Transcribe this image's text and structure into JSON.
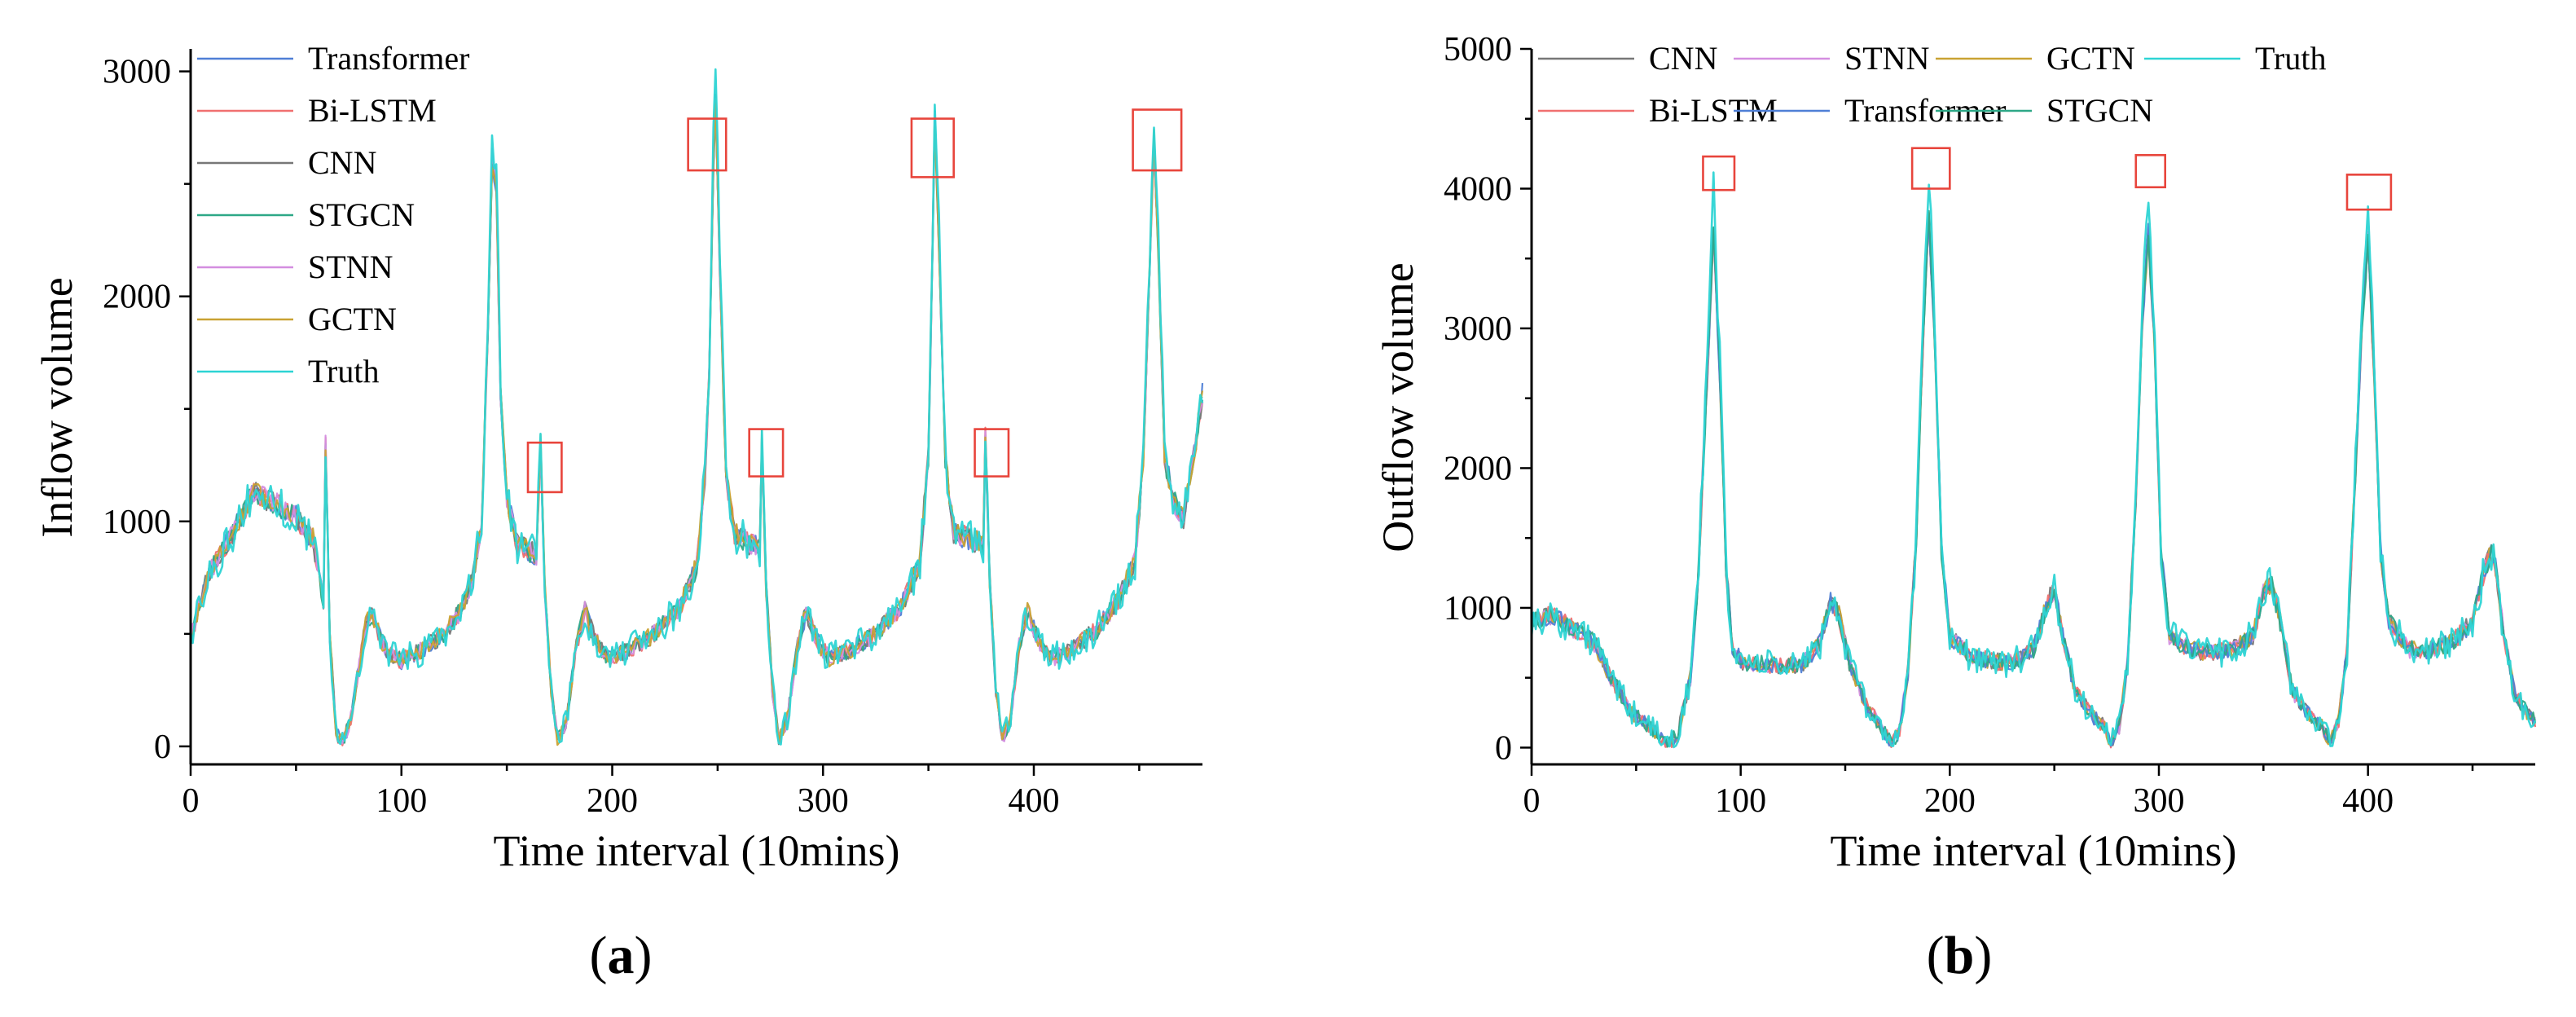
{
  "chart_data": [
    {
      "type": "line",
      "panel_label": "a",
      "xlabel": "Time interval (10mins)",
      "ylabel": "Inflow volume",
      "xlim": [
        0,
        480
      ],
      "ylim": [
        -80,
        3100
      ],
      "xticks": [
        0,
        100,
        200,
        300,
        400
      ],
      "yticks": [
        0,
        1000,
        2000,
        3000
      ],
      "grid": false,
      "legend_placement": "top-left",
      "legend_columns": 1,
      "series": [
        {
          "name": "Transformer",
          "color": "#4f7fd6"
        },
        {
          "name": "Bi-LSTM",
          "color": "#f07070"
        },
        {
          "name": "CNN",
          "color": "#777777"
        },
        {
          "name": "STGCN",
          "color": "#2ea887"
        },
        {
          "name": "STNN",
          "color": "#d48ee0"
        },
        {
          "name": "GCTN",
          "color": "#c9a233"
        },
        {
          "name": "Truth",
          "color": "#2dd4d4"
        }
      ],
      "truth_keypoints": [
        [
          0,
          480
        ],
        [
          8,
          760
        ],
        [
          20,
          950
        ],
        [
          30,
          1130
        ],
        [
          40,
          1080
        ],
        [
          50,
          1020
        ],
        [
          58,
          920
        ],
        [
          63,
          650
        ],
        [
          64,
          1350
        ],
        [
          66,
          500
        ],
        [
          69,
          60
        ],
        [
          72,
          20
        ],
        [
          76,
          120
        ],
        [
          83,
          540
        ],
        [
          86,
          590
        ],
        [
          90,
          480
        ],
        [
          95,
          400
        ],
        [
          100,
          380
        ],
        [
          110,
          430
        ],
        [
          120,
          500
        ],
        [
          128,
          600
        ],
        [
          134,
          750
        ],
        [
          138,
          1000
        ],
        [
          141,
          1900
        ],
        [
          143,
          2700
        ],
        [
          145,
          2600
        ],
        [
          147,
          1600
        ],
        [
          150,
          1100
        ],
        [
          155,
          900
        ],
        [
          160,
          870
        ],
        [
          164,
          850
        ],
        [
          166,
          1350
        ],
        [
          168,
          700
        ],
        [
          171,
          250
        ],
        [
          174,
          30
        ],
        [
          178,
          100
        ],
        [
          183,
          450
        ],
        [
          187,
          600
        ],
        [
          192,
          470
        ],
        [
          198,
          390
        ],
        [
          208,
          430
        ],
        [
          220,
          500
        ],
        [
          232,
          620
        ],
        [
          240,
          800
        ],
        [
          244,
          1200
        ],
        [
          246,
          1700
        ],
        [
          248,
          2700
        ],
        [
          249,
          3000
        ],
        [
          251,
          2200
        ],
        [
          254,
          1200
        ],
        [
          258,
          950
        ],
        [
          265,
          900
        ],
        [
          270,
          880
        ],
        [
          271,
          1380
        ],
        [
          273,
          700
        ],
        [
          276,
          250
        ],
        [
          279,
          30
        ],
        [
          283,
          120
        ],
        [
          288,
          450
        ],
        [
          292,
          600
        ],
        [
          297,
          470
        ],
        [
          303,
          390
        ],
        [
          313,
          430
        ],
        [
          325,
          500
        ],
        [
          337,
          620
        ],
        [
          346,
          820
        ],
        [
          350,
          1300
        ],
        [
          352,
          2300
        ],
        [
          353,
          2900
        ],
        [
          355,
          2300
        ],
        [
          358,
          1300
        ],
        [
          362,
          950
        ],
        [
          370,
          920
        ],
        [
          376,
          900
        ],
        [
          377,
          1400
        ],
        [
          379,
          750
        ],
        [
          382,
          250
        ],
        [
          385,
          30
        ],
        [
          389,
          120
        ],
        [
          393,
          450
        ],
        [
          397,
          600
        ],
        [
          402,
          470
        ],
        [
          408,
          390
        ],
        [
          418,
          430
        ],
        [
          430,
          520
        ],
        [
          440,
          650
        ],
        [
          448,
          820
        ],
        [
          452,
          1300
        ],
        [
          455,
          2200
        ],
        [
          457,
          2800
        ],
        [
          459,
          2300
        ],
        [
          462,
          1300
        ],
        [
          466,
          1100
        ],
        [
          471,
          1000
        ],
        [
          476,
          1300
        ],
        [
          480,
          1600
        ]
      ],
      "highlight_boxes": [
        {
          "x": [
            160,
            176
          ],
          "y": [
            1130,
            1350
          ]
        },
        {
          "x": [
            236,
            254
          ],
          "y": [
            2560,
            2790
          ]
        },
        {
          "x": [
            265,
            281
          ],
          "y": [
            1200,
            1410
          ]
        },
        {
          "x": [
            342,
            362
          ],
          "y": [
            2530,
            2790
          ]
        },
        {
          "x": [
            372,
            388
          ],
          "y": [
            1200,
            1410
          ]
        },
        {
          "x": [
            447,
            470
          ],
          "y": [
            2560,
            2830
          ]
        }
      ]
    },
    {
      "type": "line",
      "panel_label": "b",
      "xlabel": "Time interval (10mins)",
      "ylabel": "Outflow volume",
      "xlim": [
        0,
        480
      ],
      "ylim": [
        -120,
        5000
      ],
      "xticks": [
        0,
        100,
        200,
        300,
        400
      ],
      "yticks": [
        0,
        1000,
        2000,
        3000,
        4000,
        5000
      ],
      "grid": false,
      "legend_placement": "top",
      "legend_columns": 4,
      "series": [
        {
          "name": "CNN",
          "color": "#777777"
        },
        {
          "name": "STNN",
          "color": "#d48ee0"
        },
        {
          "name": "GCTN",
          "color": "#c9a233"
        },
        {
          "name": "Truth",
          "color": "#2dd4d4"
        },
        {
          "name": "Bi-LSTM",
          "color": "#f07070"
        },
        {
          "name": "Transformer",
          "color": "#4f7fd6"
        },
        {
          "name": "STGCN",
          "color": "#2ea887"
        }
      ],
      "truth_keypoints": [
        [
          0,
          900
        ],
        [
          10,
          950
        ],
        [
          20,
          850
        ],
        [
          30,
          750
        ],
        [
          38,
          500
        ],
        [
          48,
          250
        ],
        [
          58,
          130
        ],
        [
          65,
          20
        ],
        [
          70,
          100
        ],
        [
          76,
          500
        ],
        [
          80,
          1300
        ],
        [
          84,
          2800
        ],
        [
          87,
          4000
        ],
        [
          90,
          2800
        ],
        [
          93,
          1300
        ],
        [
          96,
          700
        ],
        [
          102,
          600
        ],
        [
          110,
          600
        ],
        [
          120,
          580
        ],
        [
          130,
          600
        ],
        [
          138,
          750
        ],
        [
          143,
          1050
        ],
        [
          147,
          950
        ],
        [
          152,
          600
        ],
        [
          160,
          300
        ],
        [
          168,
          130
        ],
        [
          172,
          30
        ],
        [
          176,
          120
        ],
        [
          180,
          550
        ],
        [
          184,
          1500
        ],
        [
          187,
          3000
        ],
        [
          190,
          4100
        ],
        [
          193,
          3000
        ],
        [
          196,
          1400
        ],
        [
          200,
          800
        ],
        [
          210,
          650
        ],
        [
          220,
          620
        ],
        [
          230,
          600
        ],
        [
          240,
          700
        ],
        [
          246,
          1000
        ],
        [
          250,
          1150
        ],
        [
          254,
          800
        ],
        [
          260,
          400
        ],
        [
          268,
          230
        ],
        [
          274,
          150
        ],
        [
          277,
          30
        ],
        [
          281,
          150
        ],
        [
          285,
          600
        ],
        [
          289,
          1800
        ],
        [
          292,
          3200
        ],
        [
          295,
          4000
        ],
        [
          298,
          3000
        ],
        [
          301,
          1400
        ],
        [
          305,
          800
        ],
        [
          315,
          700
        ],
        [
          325,
          680
        ],
        [
          335,
          700
        ],
        [
          345,
          800
        ],
        [
          350,
          1100
        ],
        [
          354,
          1180
        ],
        [
          358,
          900
        ],
        [
          364,
          400
        ],
        [
          372,
          230
        ],
        [
          378,
          150
        ],
        [
          382,
          30
        ],
        [
          386,
          200
        ],
        [
          390,
          700
        ],
        [
          394,
          2000
        ],
        [
          397,
          3200
        ],
        [
          400,
          3900
        ],
        [
          403,
          2800
        ],
        [
          406,
          1400
        ],
        [
          410,
          900
        ],
        [
          420,
          700
        ],
        [
          430,
          700
        ],
        [
          440,
          750
        ],
        [
          450,
          900
        ],
        [
          456,
          1300
        ],
        [
          460,
          1400
        ],
        [
          465,
          800
        ],
        [
          470,
          400
        ],
        [
          476,
          250
        ],
        [
          480,
          200
        ]
      ],
      "highlight_boxes": [
        {
          "x": [
            82,
            97
          ],
          "y": [
            3990,
            4230
          ]
        },
        {
          "x": [
            182,
            200
          ],
          "y": [
            4000,
            4290
          ]
        },
        {
          "x": [
            289,
            303
          ],
          "y": [
            4010,
            4240
          ]
        },
        {
          "x": [
            390,
            411
          ],
          "y": [
            3850,
            4100
          ]
        }
      ]
    }
  ]
}
